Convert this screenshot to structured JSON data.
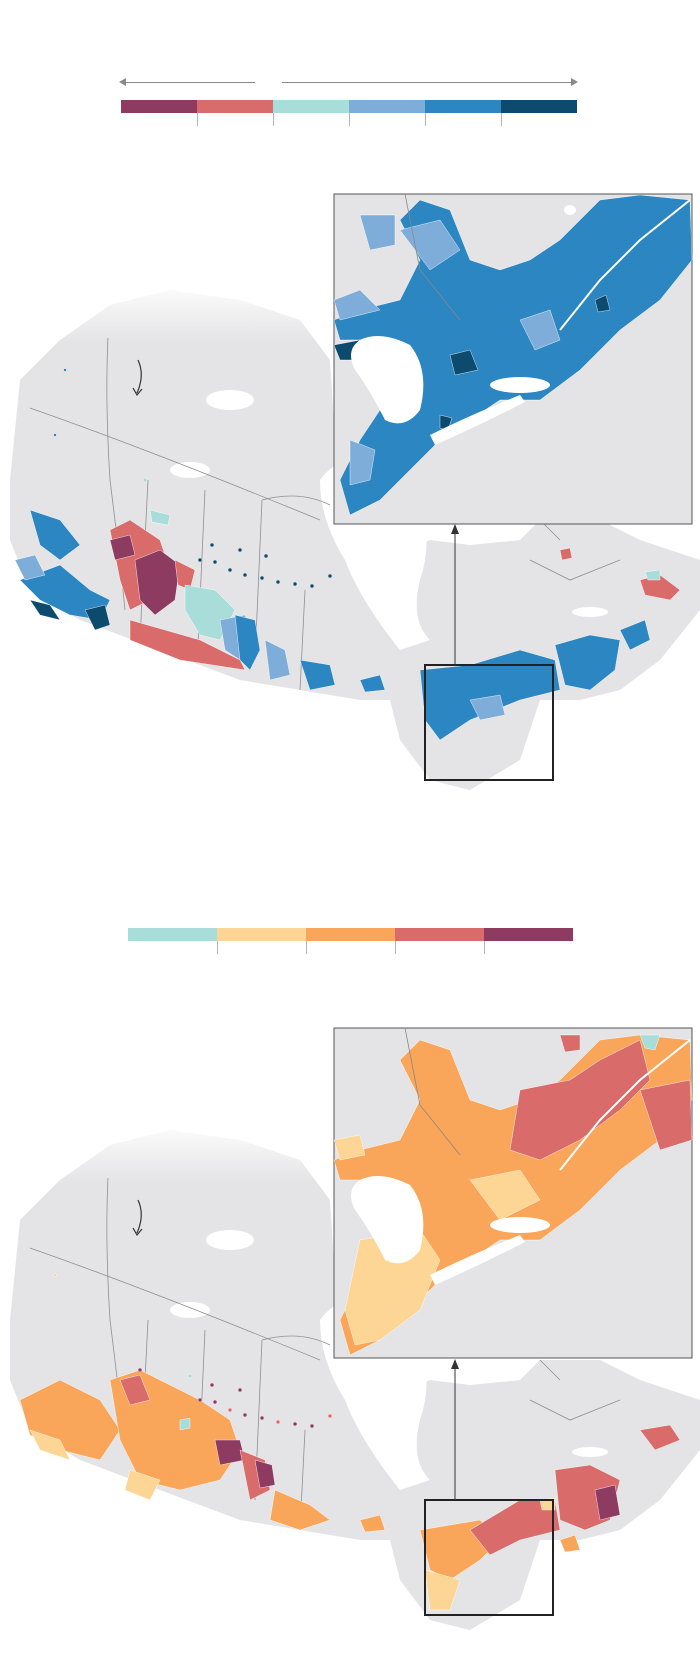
{
  "maps": [
    {
      "palette": [
        "#8e3b62",
        "#d96b6b",
        "#a8ddd9",
        "#7fadd9",
        "#2b86c2",
        "#0c4a6e"
      ],
      "land_color": "#e4e4e6",
      "water_color": "#ffffff",
      "icons": [
        "curved-arrow-icon",
        "pointer-arrow-icon"
      ]
    },
    {
      "palette": [
        "#a8ddd9",
        "#fdd594",
        "#f9a65a",
        "#d96b6b",
        "#8e3b62"
      ],
      "land_color": "#e4e4e6",
      "water_color": "#ffffff",
      "icons": [
        "curved-arrow-icon",
        "pointer-arrow-icon"
      ]
    }
  ]
}
